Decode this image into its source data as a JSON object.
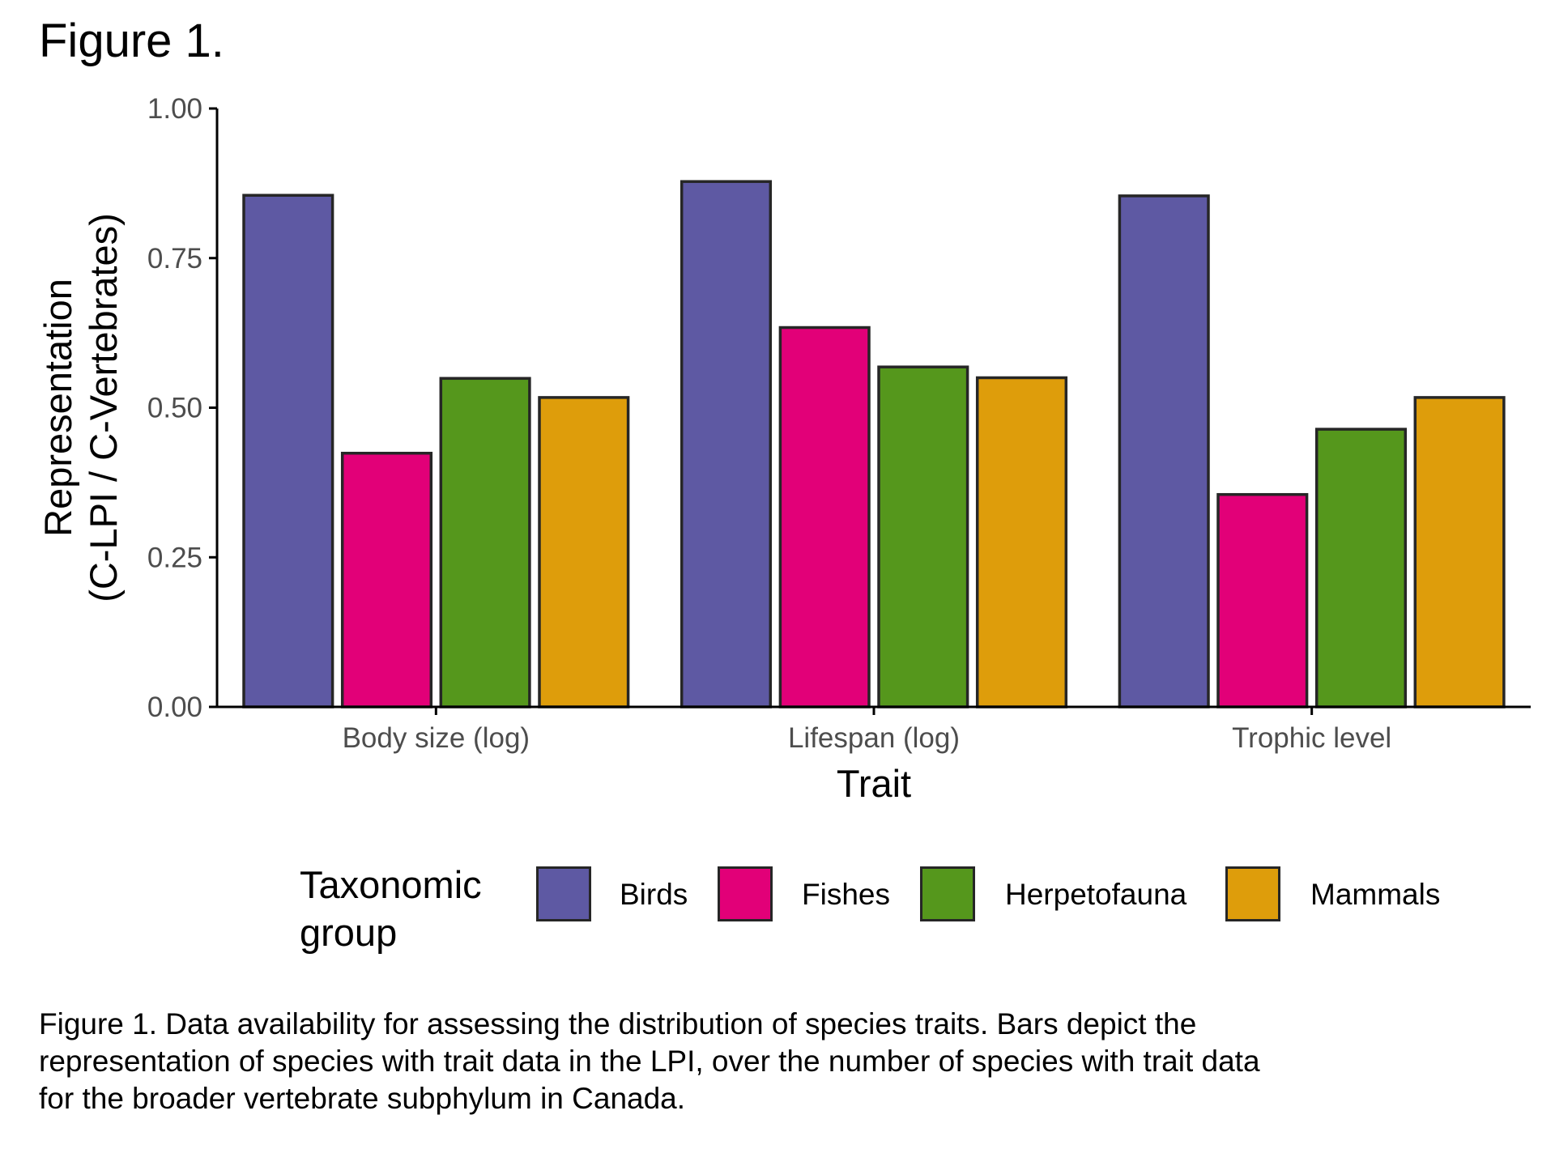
{
  "figure_label": "Figure 1.",
  "caption": "Figure 1. Data availability for assessing the distribution of species traits. Bars depict the representation of species with trait data in the LPI, over the number of species with trait data for the broader vertebrate subphylum in Canada.",
  "legend": {
    "title": "Taxonomic group",
    "items": [
      {
        "label": "Birds",
        "color": "#5e59a3"
      },
      {
        "label": "Fishes",
        "color": "#e20078"
      },
      {
        "label": "Herpetofauna",
        "color": "#55971c"
      },
      {
        "label": "Mammals",
        "color": "#de9d0b"
      }
    ]
  },
  "chart_data": {
    "type": "bar",
    "xlabel": "Trait",
    "ylabel": "Representation\n(C-LPI / C-Vertebrates)",
    "categories": [
      "Body size (log)",
      "Lifespan (log)",
      "Trophic level"
    ],
    "ylim": [
      0,
      1
    ],
    "yticks": [
      "0.00",
      "0.25",
      "0.50",
      "0.75",
      "1.00"
    ],
    "grid": false,
    "legend_position": "bottom",
    "series": [
      {
        "name": "Birds",
        "color": "#5e59a3",
        "values": [
          0.855,
          0.878,
          0.854
        ]
      },
      {
        "name": "Fishes",
        "color": "#e20078",
        "values": [
          0.424,
          0.634,
          0.355
        ]
      },
      {
        "name": "Herpetofauna",
        "color": "#55971c",
        "values": [
          0.549,
          0.568,
          0.464
        ]
      },
      {
        "name": "Mammals",
        "color": "#de9d0b",
        "values": [
          0.517,
          0.55,
          0.517
        ]
      }
    ]
  }
}
